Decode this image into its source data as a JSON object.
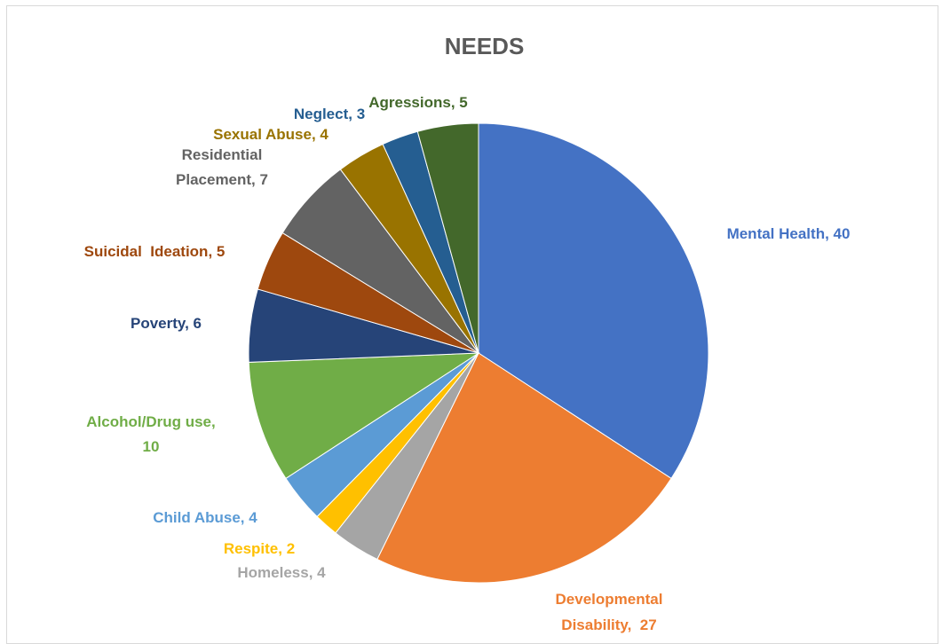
{
  "chart_data": {
    "type": "pie",
    "title": "NEEDS",
    "slices": [
      {
        "label_lines": [
          "Mental Health, 40"
        ],
        "value": 40,
        "color": "#4472c4",
        "label_color": "#4472c4"
      },
      {
        "label_lines": [
          "Developmental",
          "Disability,  27"
        ],
        "value": 27,
        "color": "#ed7d31",
        "label_color": "#ed7d31"
      },
      {
        "label_lines": [
          "Homeless, 4"
        ],
        "value": 4,
        "color": "#a5a5a5",
        "label_color": "#a5a5a5"
      },
      {
        "label_lines": [
          "Respite, 2"
        ],
        "value": 2,
        "color": "#ffc000",
        "label_color": "#ffc000"
      },
      {
        "label_lines": [
          "Child Abuse, 4"
        ],
        "value": 4,
        "color": "#5b9bd5",
        "label_color": "#5b9bd5"
      },
      {
        "label_lines": [
          "Alcohol/Drug use,",
          "10"
        ],
        "value": 10,
        "color": "#70ad47",
        "label_color": "#70ad47"
      },
      {
        "label_lines": [
          "Poverty, 6"
        ],
        "value": 6,
        "color": "#264478",
        "label_color": "#264478"
      },
      {
        "label_lines": [
          "Suicidal  Ideation, 5"
        ],
        "value": 5,
        "color": "#9e480e",
        "label_color": "#9e480e"
      },
      {
        "label_lines": [
          "Residential",
          "Placement, 7"
        ],
        "value": 7,
        "color": "#636363",
        "label_color": "#636363"
      },
      {
        "label_lines": [
          "Sexual Abuse, 4"
        ],
        "value": 4,
        "color": "#997300",
        "label_color": "#997300"
      },
      {
        "label_lines": [
          "Neglect, 3"
        ],
        "value": 3,
        "color": "#255e91",
        "label_color": "#255e91"
      },
      {
        "label_lines": [
          "Agressions, 5"
        ],
        "value": 5,
        "color": "#43682b",
        "label_color": "#43682b"
      }
    ]
  }
}
